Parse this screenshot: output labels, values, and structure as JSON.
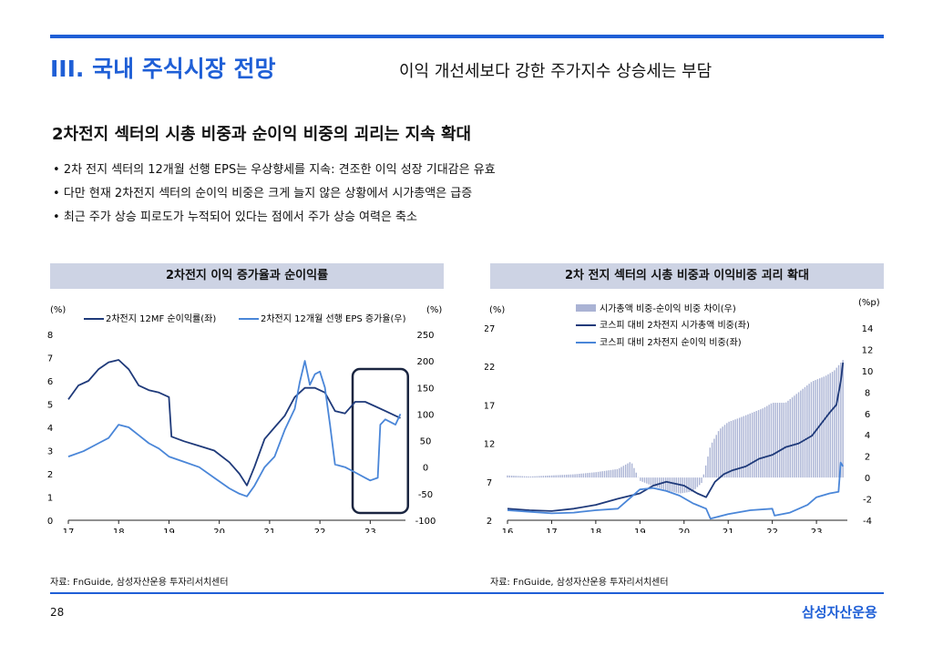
{
  "header": {
    "section_title": "III. 국내 주식시장 전망",
    "headline": "이익 개선세보다 강한 주가지수 상승세는 부담"
  },
  "subtitle": "2차전지 섹터의 시총 비중과 순이익 비중의 괴리는 지속 확대",
  "bullets": [
    "2차 전지 섹터의 12개월 선행 EPS는 우상향세를 지속: 견조한 이익 성장 기대감은 유효",
    "다만 현재 2차전지 섹터의 순이익 비중은 크게 늘지 않은 상황에서 시가총액은 급증",
    "최근 주가 상승 피로도가 누적되어 있다는 점에서 주가 상승 여력은 축소"
  ],
  "colors": {
    "accent": "#1f5fd6",
    "navy": "#1f3a7a",
    "lightblue": "#4a86d8",
    "bar": "#aab3d4",
    "header_bg": "#cdd3e4"
  },
  "chart_data": [
    {
      "type": "line",
      "title": "2차전지 이익 증가율과 순이익률",
      "left_unit": "(%)",
      "right_unit": "(%)",
      "left_axis": {
        "range": [
          0,
          8
        ],
        "ticks": [
          "0",
          "1",
          "2",
          "3",
          "4",
          "5",
          "6",
          "7",
          "8"
        ]
      },
      "right_axis": {
        "range": [
          -100,
          250
        ],
        "ticks": [
          "-100",
          "-50",
          "0",
          "50",
          "100",
          "150",
          "200",
          "250"
        ]
      },
      "x_range": [
        17,
        23.7
      ],
      "x_ticks": [
        "17",
        "18",
        "19",
        "20",
        "21",
        "22",
        "23"
      ],
      "series": [
        {
          "name": "2차전지 12MF 순이익률(좌)",
          "axis": "left",
          "color": "#1f3a7a",
          "x": [
            17.0,
            17.2,
            17.4,
            17.6,
            17.8,
            18.0,
            18.2,
            18.4,
            18.6,
            18.8,
            19.0,
            19.05,
            19.3,
            19.6,
            19.9,
            20.2,
            20.4,
            20.55,
            20.7,
            20.9,
            21.1,
            21.3,
            21.5,
            21.7,
            21.9,
            22.1,
            22.3,
            22.5,
            22.7,
            22.9,
            23.1,
            23.3,
            23.5,
            23.6
          ],
          "values": [
            5.2,
            5.8,
            6.0,
            6.5,
            6.8,
            6.9,
            6.5,
            5.8,
            5.6,
            5.5,
            5.3,
            3.6,
            3.4,
            3.2,
            3.0,
            2.5,
            2.0,
            1.5,
            2.3,
            3.5,
            4.0,
            4.5,
            5.3,
            5.7,
            5.7,
            5.5,
            4.7,
            4.6,
            5.1,
            5.1,
            4.9,
            4.7,
            4.5,
            4.4
          ]
        },
        {
          "name": "2차전지 12개월 선행 EPS 증가율(우)",
          "axis": "right",
          "color": "#4a86d8",
          "x": [
            17.0,
            17.3,
            17.6,
            17.8,
            18.0,
            18.2,
            18.4,
            18.6,
            18.8,
            19.0,
            19.3,
            19.6,
            19.9,
            20.2,
            20.4,
            20.55,
            20.7,
            20.9,
            21.1,
            21.3,
            21.5,
            21.6,
            21.7,
            21.8,
            21.9,
            22.0,
            22.1,
            22.2,
            22.3,
            22.5,
            22.7,
            22.9,
            23.0,
            23.15,
            23.2,
            23.3,
            23.5,
            23.6
          ],
          "values": [
            20,
            30,
            45,
            55,
            80,
            75,
            60,
            45,
            35,
            20,
            10,
            0,
            -20,
            -40,
            -50,
            -55,
            -35,
            0,
            20,
            70,
            110,
            160,
            200,
            155,
            175,
            180,
            150,
            80,
            5,
            0,
            -10,
            -20,
            -25,
            -20,
            80,
            90,
            80,
            100
          ]
        }
      ],
      "highlight_x": [
        22.65,
        23.75
      ],
      "source": "자료: FnGuide, 삼성자산운용 투자리서치센터"
    },
    {
      "type": "bar+line",
      "title": "2차 전지 섹터의 시총 비중과 이익비중 괴리 확대",
      "left_unit": "(%)",
      "right_unit": "(%p)",
      "left_axis": {
        "range": [
          2,
          27
        ],
        "ticks": [
          "2",
          "7",
          "12",
          "17",
          "22",
          "27"
        ]
      },
      "right_axis": {
        "range": [
          -4,
          14
        ],
        "ticks": [
          "-4",
          "-2",
          "0",
          "2",
          "4",
          "6",
          "8",
          "10",
          "12",
          "14"
        ]
      },
      "x_range": [
        16,
        23.7
      ],
      "x_ticks": [
        "16",
        "17",
        "18",
        "19",
        "20",
        "21",
        "22",
        "23"
      ],
      "series": [
        {
          "name": "시가총액 비중-순이익 비중 차이(우)",
          "axis": "right",
          "kind": "bar",
          "color": "#aab3d4",
          "x": [
            16.0,
            16.5,
            17.0,
            17.5,
            18.0,
            18.5,
            18.8,
            19.0,
            19.3,
            19.6,
            19.9,
            20.2,
            20.4,
            20.6,
            20.8,
            21.0,
            21.2,
            21.5,
            21.8,
            22.0,
            22.3,
            22.6,
            22.9,
            23.2,
            23.4,
            23.6
          ],
          "values": [
            0.2,
            0.1,
            0.2,
            0.3,
            0.5,
            0.8,
            1.5,
            -0.3,
            -0.8,
            -1.2,
            -1.5,
            -1.3,
            -0.5,
            3.0,
            4.5,
            5.2,
            5.5,
            6.0,
            6.5,
            7.0,
            7.0,
            8.0,
            9.0,
            9.5,
            10.0,
            11.0
          ]
        },
        {
          "name": "코스피 대비 2차전지 시가총액 비중(좌)",
          "axis": "left",
          "kind": "line",
          "color": "#1f3a7a",
          "x": [
            16.0,
            16.5,
            17.0,
            17.5,
            18.0,
            18.5,
            19.0,
            19.3,
            19.6,
            20.0,
            20.3,
            20.5,
            20.7,
            20.9,
            21.1,
            21.4,
            21.7,
            22.0,
            22.3,
            22.6,
            22.9,
            23.1,
            23.3,
            23.45,
            23.55,
            23.6
          ],
          "values": [
            3.5,
            3.3,
            3.2,
            3.5,
            4.0,
            4.8,
            5.5,
            6.5,
            7.0,
            6.5,
            5.5,
            5.0,
            7.0,
            8.0,
            8.5,
            9.0,
            10.0,
            10.5,
            11.5,
            12.0,
            13.0,
            14.5,
            16.0,
            17.0,
            20.0,
            22.5
          ]
        },
        {
          "name": "코스피 대비 2차전지 순이익 비중(좌)",
          "axis": "left",
          "kind": "line",
          "color": "#4a86d8",
          "x": [
            16.0,
            16.5,
            17.0,
            17.5,
            18.0,
            18.5,
            19.0,
            19.3,
            19.6,
            19.9,
            20.2,
            20.5,
            20.6,
            21.0,
            21.5,
            22.0,
            22.05,
            22.4,
            22.8,
            23.0,
            23.3,
            23.5,
            23.55,
            23.6
          ],
          "values": [
            3.3,
            3.1,
            2.9,
            3.0,
            3.3,
            3.5,
            6.0,
            6.2,
            5.8,
            5.2,
            4.2,
            3.5,
            2.2,
            2.8,
            3.3,
            3.5,
            2.6,
            3.0,
            4.0,
            5.0,
            5.5,
            5.7,
            9.5,
            9.0
          ]
        }
      ],
      "source": "자료: FnGuide, 삼성자산운용 투자리서치센터"
    }
  ],
  "footer": {
    "page_number": "28",
    "brand": "삼성자산운용"
  }
}
